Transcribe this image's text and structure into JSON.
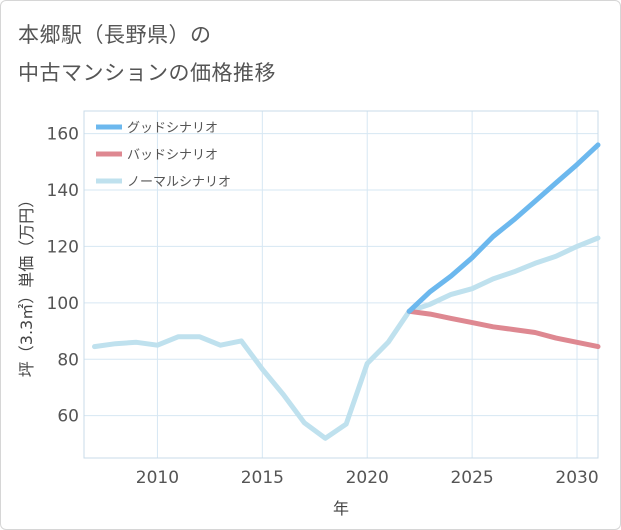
{
  "header": {
    "title_line1": "本郷駅（長野県）の",
    "title_line2": "中古マンションの価格推移"
  },
  "colors": {
    "good": "#6cb8ee",
    "bad": "#de8891",
    "normal": "#bfe1ee",
    "grid": "#d6e7f3"
  },
  "chart_data": {
    "type": "line",
    "xlabel": "年",
    "ylabel": "坪（3.3㎡）単価（万円）",
    "xlim": [
      2006.5,
      2031
    ],
    "ylim": [
      45,
      168
    ],
    "x_ticks": [
      2010,
      2015,
      2020,
      2025,
      2030
    ],
    "y_ticks": [
      60,
      80,
      100,
      120,
      140,
      160
    ],
    "grid": true,
    "legend_position": "top-left",
    "series": [
      {
        "name": "グッドシナリオ",
        "color_key": "good",
        "x": [
          2022,
          2023,
          2024,
          2025,
          2026,
          2027,
          2028,
          2029,
          2030,
          2031
        ],
        "y": [
          97,
          104,
          109.5,
          116,
          123.5,
          129.5,
          136,
          142.5,
          149,
          156
        ]
      },
      {
        "name": "バッドシナリオ",
        "color_key": "bad",
        "x": [
          2022,
          2023,
          2024,
          2025,
          2026,
          2027,
          2028,
          2029,
          2030,
          2031
        ],
        "y": [
          97,
          96,
          94.5,
          93,
          91.5,
          90.5,
          89.5,
          87.5,
          86,
          84.5
        ]
      },
      {
        "name": "ノーマルシナリオ",
        "color_key": "normal",
        "x": [
          2007,
          2008,
          2009,
          2010,
          2011,
          2012,
          2013,
          2014,
          2015,
          2016,
          2017,
          2018,
          2019,
          2020,
          2021,
          2022,
          2023,
          2024,
          2025,
          2026,
          2027,
          2028,
          2029,
          2030,
          2031
        ],
        "y": [
          84.5,
          85.5,
          86,
          85,
          88,
          88,
          85,
          86.5,
          76.5,
          67.5,
          57.5,
          52,
          57,
          78.5,
          86,
          97,
          99.5,
          103,
          105,
          108.5,
          111,
          114,
          116.5,
          120,
          123
        ]
      }
    ]
  }
}
